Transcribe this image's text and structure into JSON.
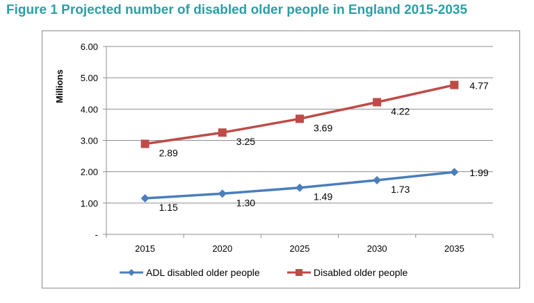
{
  "figure": {
    "title": "Figure 1 Projected number of disabled older people in England 2015-2035"
  },
  "chart_data": {
    "type": "line",
    "title": "Figure 1 Projected number of disabled older people in England 2015-2035",
    "xlabel": "",
    "ylabel": "Millions",
    "categories": [
      "2015",
      "2020",
      "2025",
      "2030",
      "2035"
    ],
    "ylim": [
      0,
      6
    ],
    "yticks": [
      {
        "value": 0,
        "label": "-"
      },
      {
        "value": 1,
        "label": "1.00"
      },
      {
        "value": 2,
        "label": "2.00"
      },
      {
        "value": 3,
        "label": "3.00"
      },
      {
        "value": 4,
        "label": "4.00"
      },
      {
        "value": 5,
        "label": "5.00"
      },
      {
        "value": 6,
        "label": "6.00"
      }
    ],
    "grid": true,
    "legend": "bottom",
    "series": [
      {
        "name": "ADL disabled older people",
        "color": "#4a7ebb",
        "marker": "diamond",
        "values": [
          1.15,
          1.3,
          1.49,
          1.73,
          1.99
        ],
        "labels": [
          "1.15",
          "1.30",
          "1.49",
          "1.73",
          "1.99"
        ]
      },
      {
        "name": "Disabled older people",
        "color": "#be4b48",
        "marker": "square",
        "values": [
          2.89,
          3.25,
          3.69,
          4.22,
          4.77
        ],
        "labels": [
          "2.89",
          "3.25",
          "3.69",
          "4.22",
          "4.77"
        ]
      }
    ]
  }
}
